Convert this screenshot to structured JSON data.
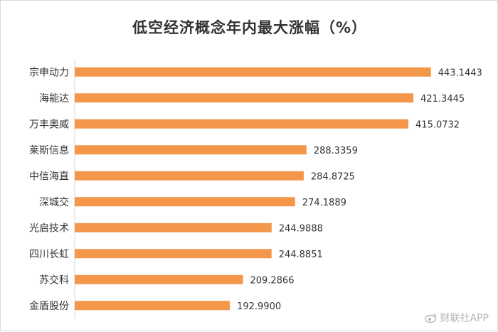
{
  "colors": {
    "bar": "#F4974A",
    "axis": "#d9d9d9",
    "text": "#333333",
    "watermark": "#b5b5b5"
  },
  "watermark": {
    "text": "财联社APP",
    "icon": "weibo-icon"
  },
  "chart_data": {
    "type": "bar",
    "orientation": "horizontal",
    "title": "低空经济概念年内最大涨幅（%）",
    "categories": [
      "宗申动力",
      "海能达",
      "万丰奥威",
      "莱斯信息",
      "中信海直",
      "深城交",
      "光启技术",
      "四川长虹",
      "苏交科",
      "金盾股份"
    ],
    "values": [
      443.1443,
      421.3445,
      415.0732,
      288.3359,
      284.8725,
      274.1889,
      244.9888,
      244.8851,
      209.2866,
      192.99
    ],
    "value_labels": [
      "443.1443",
      "421.3445",
      "415.0732",
      "288.3359",
      "284.8725",
      "274.1889",
      "244.9888",
      "244.8851",
      "209.2866",
      "192.9900"
    ],
    "xlim": [
      0,
      500
    ],
    "grid": false,
    "legend": "none"
  }
}
